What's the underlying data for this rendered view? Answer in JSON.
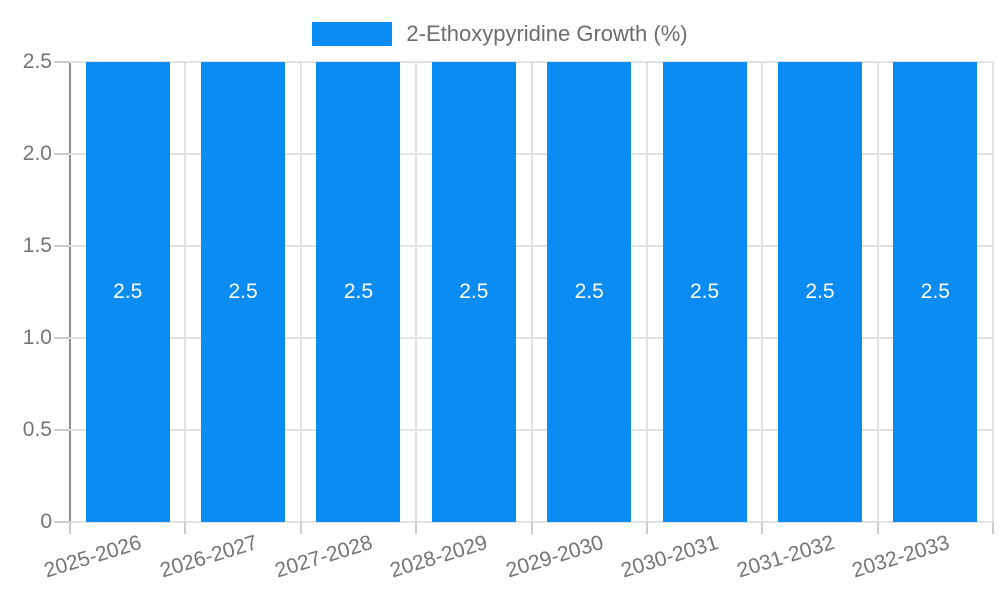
{
  "chart_data": {
    "type": "bar",
    "title": "2-Ethoxypyridine Growth (%)",
    "categories": [
      "2025-2026",
      "2026-2027",
      "2027-2028",
      "2028-2029",
      "2029-2030",
      "2030-2031",
      "2031-2032",
      "2032-2033"
    ],
    "values": [
      2.5,
      2.5,
      2.5,
      2.5,
      2.5,
      2.5,
      2.5,
      2.5
    ],
    "bar_value_labels": [
      "2.5",
      "2.5",
      "2.5",
      "2.5",
      "2.5",
      "2.5",
      "2.5",
      "2.5"
    ],
    "xlabel": "",
    "ylabel": "",
    "ylim": [
      0,
      2.5
    ],
    "yticks": [
      0,
      0.5,
      1.0,
      1.5,
      2.0,
      2.5
    ],
    "ytick_labels": [
      "0",
      "0.5",
      "1.0",
      "1.5",
      "2.0",
      "2.5"
    ],
    "grid": true,
    "legend_position": "top-center"
  },
  "colors": {
    "bar": "#0b8cf2",
    "bar_label_text": "#ffffff",
    "axis_text": "#757575",
    "legend_text": "#6d6d6d",
    "grid_line": "#e2e2e2",
    "axis_line_y": "#8f8f8f",
    "axis_line_x": "#b0b0b0",
    "tick_line": "#cccccc",
    "background": "#ffffff"
  }
}
